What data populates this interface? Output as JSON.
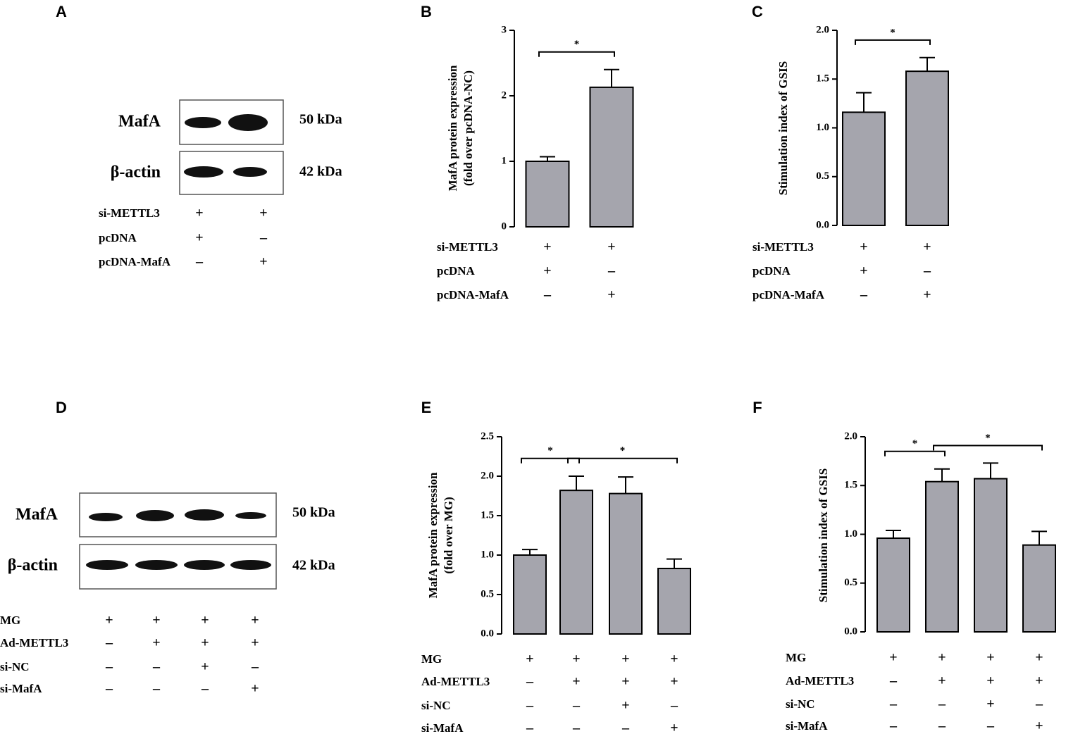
{
  "blots": [
    {
      "letter": "A",
      "rows": [
        {
          "label": "MafA",
          "size": "50 kDa"
        },
        {
          "label": "β-actin",
          "size": "42 kDa"
        }
      ],
      "conditions": [
        {
          "name": "si-METTL3",
          "signs": [
            "+",
            "+"
          ]
        },
        {
          "name": "pcDNA",
          "signs": [
            "+",
            "–"
          ]
        },
        {
          "name": "pcDNA-MafA",
          "signs": [
            "–",
            "+"
          ]
        }
      ]
    },
    {
      "letter": "D",
      "rows": [
        {
          "label": "MafA",
          "size": "50 kDa"
        },
        {
          "label": "β-actin",
          "size": "42 kDa"
        }
      ],
      "conditions": [
        {
          "name": "MG",
          "signs": [
            "+",
            "+",
            "+",
            "+"
          ]
        },
        {
          "name": "Ad-METTL3",
          "signs": [
            "–",
            "+",
            "+",
            "+"
          ]
        },
        {
          "name": "si-NC",
          "signs": [
            "–",
            "–",
            "+",
            "–"
          ]
        },
        {
          "name": "si-MafA",
          "signs": [
            "–",
            "–",
            "–",
            "+"
          ]
        }
      ]
    }
  ],
  "chart_data": [
    {
      "type": "bar",
      "letter": "B",
      "ylabel": [
        "MafA protein expression",
        "(fold over pcDNA-NC)"
      ],
      "color": "#a5a5ad",
      "values": [
        1.0,
        2.13
      ],
      "errors": [
        0.07,
        0.27
      ],
      "ylim": [
        0,
        3
      ],
      "yticks": [
        0,
        1,
        2,
        3
      ],
      "brackets": [
        {
          "from": 0,
          "to": 1,
          "label": "*"
        }
      ],
      "conditions": [
        {
          "name": "si-METTL3",
          "signs": [
            "+",
            "+"
          ]
        },
        {
          "name": "pcDNA",
          "signs": [
            "+",
            "–"
          ]
        },
        {
          "name": "pcDNA-MafA",
          "signs": [
            "–",
            "+"
          ]
        }
      ]
    },
    {
      "type": "bar",
      "letter": "C",
      "ylabel": [
        "Stimulation index of GSIS"
      ],
      "color": "#a5a5ad",
      "values": [
        1.16,
        1.58
      ],
      "errors": [
        0.2,
        0.14
      ],
      "ylim": [
        0,
        2
      ],
      "yticks": [
        {
          "value": 0,
          "label": "0.0"
        },
        0.5,
        {
          "value": 1,
          "label": "1.0"
        },
        1.5,
        {
          "value": 2,
          "label": "2.0"
        }
      ],
      "brackets": [
        {
          "from": 0,
          "to": 1,
          "label": "*"
        }
      ],
      "conditions": [
        {
          "name": "si-METTL3",
          "signs": [
            "+",
            "+"
          ]
        },
        {
          "name": "pcDNA",
          "signs": [
            "+",
            "–"
          ]
        },
        {
          "name": "pcDNA-MafA",
          "signs": [
            "–",
            "+"
          ]
        }
      ]
    },
    {
      "type": "bar",
      "letter": "E",
      "ylabel": [
        "MafA protein expression",
        "(fold over MG)"
      ],
      "color": "#a5a5ad",
      "values": [
        1.0,
        1.82,
        1.78,
        0.83
      ],
      "errors": [
        0.07,
        0.18,
        0.21,
        0.12
      ],
      "ylim": [
        0,
        2.5
      ],
      "yticks": [
        {
          "value": 0,
          "label": "0.0"
        },
        0.5,
        {
          "value": 1,
          "label": "1.0"
        },
        1.5,
        {
          "value": 2,
          "label": "2.0"
        },
        2.5
      ],
      "brackets": [
        {
          "from": 0,
          "to": 1,
          "label": "*"
        },
        {
          "from": 1,
          "to": 3,
          "label": "*"
        }
      ],
      "conditions": [
        {
          "name": "MG",
          "signs": [
            "+",
            "+",
            "+",
            "+"
          ]
        },
        {
          "name": "Ad-METTL3",
          "signs": [
            "–",
            "+",
            "+",
            "+"
          ]
        },
        {
          "name": "si-NC",
          "signs": [
            "–",
            "–",
            "+",
            "–"
          ]
        },
        {
          "name": "si-MafA",
          "signs": [
            "–",
            "–",
            "–",
            "+"
          ]
        }
      ]
    },
    {
      "type": "bar",
      "letter": "F",
      "ylabel": [
        "Stimulation index of GSIS"
      ],
      "color": "#a5a5ad",
      "values": [
        0.96,
        1.54,
        1.57,
        0.89
      ],
      "errors": [
        0.08,
        0.13,
        0.16,
        0.14
      ],
      "ylim": [
        0,
        2
      ],
      "yticks": [
        {
          "value": 0,
          "label": "0.0"
        },
        0.5,
        {
          "value": 1,
          "label": "1.0"
        },
        1.5,
        {
          "value": 2,
          "label": "2.0"
        }
      ],
      "brackets": [
        {
          "from": 0,
          "to": 1,
          "label": "*"
        },
        {
          "from": 1,
          "to": 3,
          "label": "*"
        }
      ],
      "conditions": [
        {
          "name": "MG",
          "signs": [
            "+",
            "+",
            "+",
            "+"
          ]
        },
        {
          "name": "Ad-METTL3",
          "signs": [
            "–",
            "+",
            "+",
            "+"
          ]
        },
        {
          "name": "si-NC",
          "signs": [
            "–",
            "–",
            "+",
            "–"
          ]
        },
        {
          "name": "si-MafA",
          "signs": [
            "–",
            "–",
            "–",
            "+"
          ]
        }
      ]
    }
  ]
}
